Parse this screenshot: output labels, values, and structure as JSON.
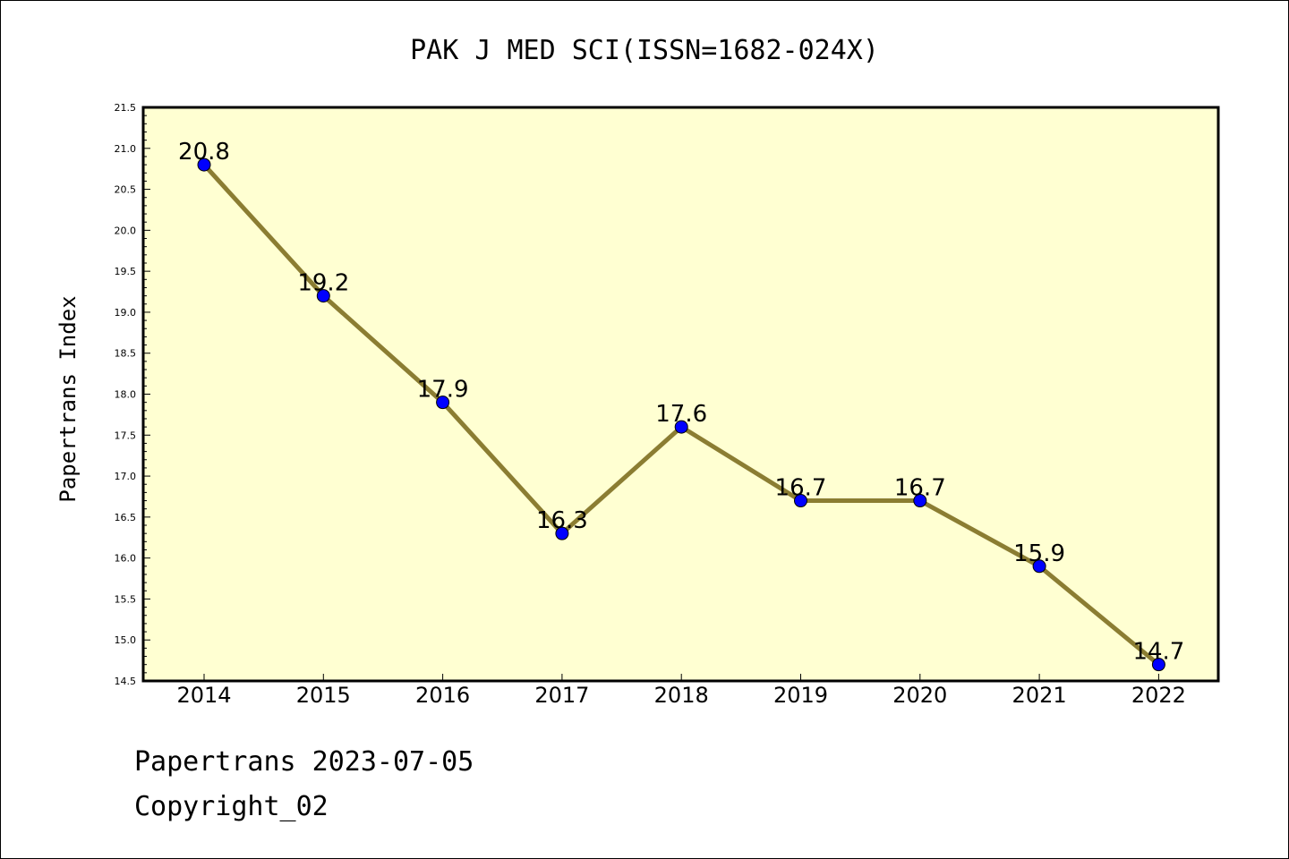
{
  "chart_data": {
    "type": "line",
    "title": "PAK J MED SCI(ISSN=1682-024X)",
    "ylabel": "Papertrans Index",
    "xlabel": "",
    "categories": [
      "2014",
      "2015",
      "2016",
      "2017",
      "2018",
      "2019",
      "2020",
      "2021",
      "2022"
    ],
    "series": [
      {
        "values": [
          20.8,
          19.2,
          17.9,
          16.3,
          17.6,
          16.7,
          16.7,
          15.9,
          14.7
        ]
      }
    ],
    "data_labels": [
      "20.8",
      "19.2",
      "17.9",
      "16.3",
      "17.6",
      "16.7",
      "16.7",
      "15.9",
      "14.7"
    ],
    "ylim": [
      14.5,
      21.5
    ],
    "yticks": [
      "14.5",
      "15.0",
      "15.5",
      "16.0",
      "16.5",
      "17.0",
      "17.5",
      "18.0",
      "18.5",
      "19.0",
      "19.5",
      "20.0",
      "20.5",
      "21.0",
      "21.5"
    ],
    "grid": false,
    "colors": {
      "plot_background": "#ffffd2",
      "line": "#8b7d32",
      "marker": "#0000ff"
    }
  },
  "footer": {
    "line1": "Papertrans 2023-07-05",
    "line2": "Copyright_02"
  }
}
